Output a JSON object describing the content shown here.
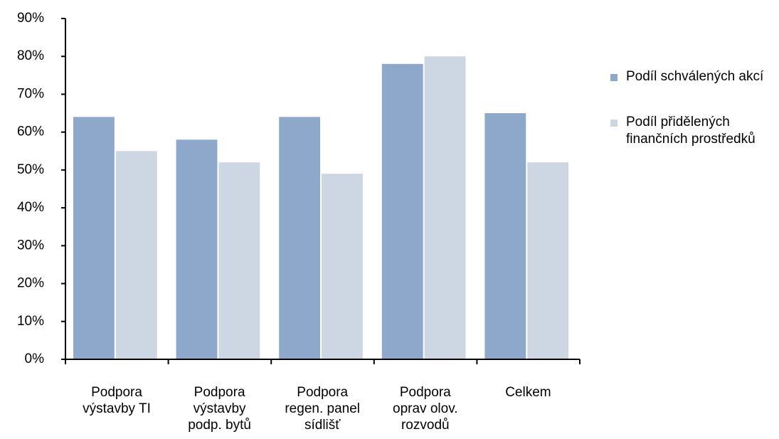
{
  "chart_data": {
    "type": "bar",
    "categories": [
      "Podpora\nvýstavby  TI",
      "Podpora\nvýstavby\npodp. bytů",
      "Podpora\nregen. panel\nsídlišť",
      "Podpora\noprav olov.\nrozvodů",
      "Celkem"
    ],
    "series": [
      {
        "name": "Podíl schválených akcí",
        "color": "#8ea8cc",
        "values": [
          64,
          58,
          64,
          78,
          65
        ]
      },
      {
        "name": "Podíl přidělených finančních prostředků",
        "color": "#cdd6e3",
        "values": [
          55,
          52,
          49,
          80,
          52
        ]
      }
    ],
    "ylim": [
      0,
      90
    ],
    "yticks": [
      {
        "value": 0,
        "label": "0%"
      },
      {
        "value": 10,
        "label": "10%"
      },
      {
        "value": 20,
        "label": "20%"
      },
      {
        "value": 30,
        "label": "30%"
      },
      {
        "value": 40,
        "label": "40%"
      },
      {
        "value": 50,
        "label": "50%"
      },
      {
        "value": 60,
        "label": "60%"
      },
      {
        "value": 70,
        "label": "70%"
      },
      {
        "value": 80,
        "label": "80%"
      },
      {
        "value": 90,
        "label": "90%"
      }
    ],
    "legend": "right"
  }
}
